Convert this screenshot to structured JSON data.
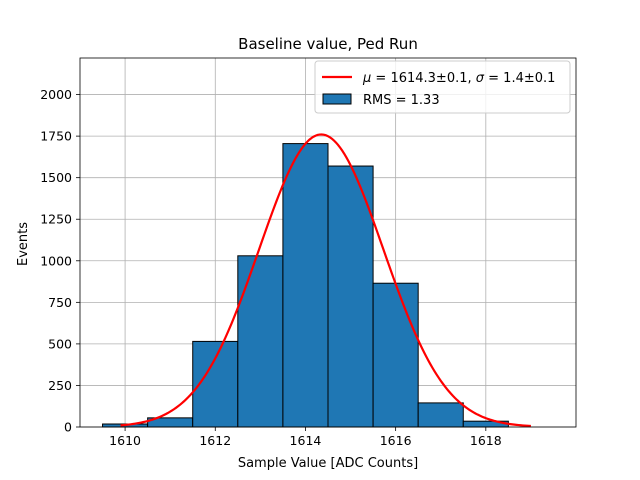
{
  "chart_data": {
    "type": "bar",
    "title": "Baseline value, Ped Run",
    "xlabel": "Sample Value [ADC Counts]",
    "ylabel": "Events",
    "xlim": [
      1609,
      1620
    ],
    "ylim": [
      0,
      2220
    ],
    "grid": true,
    "xticks": [
      1610,
      1612,
      1614,
      1616,
      1618
    ],
    "xtick_labels": [
      "1610",
      "1612",
      "1614",
      "1616",
      "1618"
    ],
    "yticks": [
      0,
      250,
      500,
      750,
      1000,
      1250,
      1500,
      1750,
      2000
    ],
    "ytick_labels": [
      "0",
      "250",
      "500",
      "750",
      "1000",
      "1250",
      "1500",
      "1750",
      "2000"
    ],
    "histogram": {
      "name": "RMS = 1.33",
      "color": "#1f77b4",
      "edge_color": "#000000",
      "bins": [
        {
          "left": 1609.5,
          "right": 1610.5,
          "count": 18
        },
        {
          "left": 1610.5,
          "right": 1611.5,
          "count": 55
        },
        {
          "left": 1611.5,
          "right": 1612.5,
          "count": 515
        },
        {
          "left": 1612.5,
          "right": 1613.5,
          "count": 1030
        },
        {
          "left": 1613.5,
          "right": 1614.5,
          "count": 1705
        },
        {
          "left": 1614.5,
          "right": 1615.5,
          "count": 1570
        },
        {
          "left": 1615.5,
          "right": 1616.5,
          "count": 865
        },
        {
          "left": 1616.5,
          "right": 1617.5,
          "count": 145
        },
        {
          "left": 1617.5,
          "right": 1618.5,
          "count": 35
        }
      ]
    },
    "fit": {
      "type": "gaussian",
      "color": "#ff0000",
      "amplitude": 1760,
      "mean": 1614.35,
      "sigma": 1.38,
      "x_range": [
        1609.9,
        1619.0
      ]
    },
    "legend": {
      "position": "top-right",
      "fit_label_parts": {
        "mu_symbol": "μ",
        "mu_value": " = 1614.3±0.1, ",
        "sigma_symbol": "σ",
        "sigma_value": " = 1.4±0.1"
      },
      "hist_label": "RMS = 1.33"
    }
  }
}
